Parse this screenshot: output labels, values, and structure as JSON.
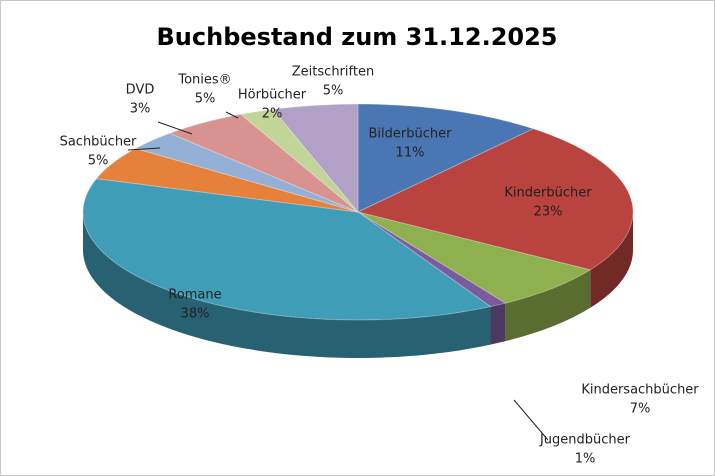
{
  "chart_data": {
    "type": "pie3d",
    "title": "Buchbestand zum 31.12.2025",
    "categories": [
      "Bilderbücher",
      "Kinderbücher",
      "Kindersachbücher",
      "Jugendbücher",
      "Romane",
      "Sachbücher",
      "DVD",
      "Tonies®",
      "Hörbücher",
      "Zeitschriften"
    ],
    "values": [
      11,
      23,
      7,
      1,
      38,
      5,
      3,
      5,
      2,
      5
    ],
    "value_labels": [
      "11%",
      "23%",
      "7%",
      "1%",
      "38%",
      "5%",
      "3%",
      "5%",
      "2%",
      "5%"
    ],
    "colors": [
      "#4a77b4",
      "#b8433f",
      "#8fb04e",
      "#7a5c9e",
      "#409db8",
      "#e5813a",
      "#95b0d6",
      "#d8928f",
      "#c0d597",
      "#b2a1c6"
    ]
  }
}
